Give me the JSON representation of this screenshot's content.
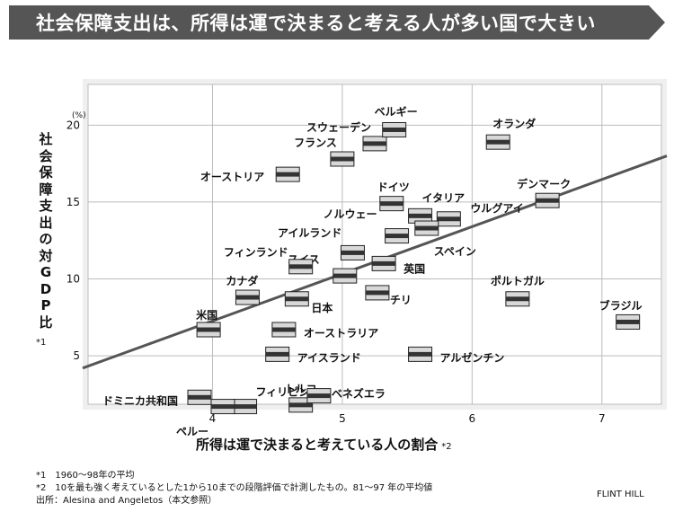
{
  "title": "社会保障支出は、所得は運で決まると考える人が多い国で大きい",
  "colors": {
    "banner": "#555555",
    "background": "#ffffff",
    "axis_band": "#efefef",
    "grid": "#bcbcbc",
    "trend": "#555555"
  },
  "chart_data": {
    "type": "scatter",
    "xlabel": "所得は運で決まると考えている人の割合",
    "xlabel_note": "*2",
    "ylabel": "社会保障支出の対GDP比",
    "ylabel_note": "*1",
    "y_unit": "(%)",
    "xlim": [
      3.0,
      7.5
    ],
    "ylim": [
      1.5,
      23
    ],
    "x_ticks": [
      "4",
      "5",
      "6",
      "7"
    ],
    "y_ticks": [
      "5",
      "10",
      "15",
      "20"
    ],
    "grid": true,
    "trend_line": {
      "from": [
        3.0,
        4.2
      ],
      "to": [
        7.5,
        18.0
      ]
    },
    "points": [
      {
        "label": "スウェーデン",
        "x": 5.25,
        "y": 18.8
      },
      {
        "label": "ベルギー",
        "x": 5.4,
        "y": 19.7
      },
      {
        "label": "オランダ",
        "x": 6.2,
        "y": 18.9
      },
      {
        "label": "フランス",
        "x": 5.0,
        "y": 17.8
      },
      {
        "label": "オーストリア",
        "x": 4.58,
        "y": 16.8
      },
      {
        "label": "ドイツ",
        "x": 5.38,
        "y": 14.9
      },
      {
        "label": "イタリア",
        "x": 5.6,
        "y": 14.1
      },
      {
        "label": "ウルグアイ",
        "x": 5.82,
        "y": 13.9
      },
      {
        "label": "デンマーク",
        "x": 6.58,
        "y": 15.1
      },
      {
        "label": "ノルウェー",
        "x": 5.42,
        "y": 12.8
      },
      {
        "label": "スペイン",
        "x": 5.65,
        "y": 13.3
      },
      {
        "label": "アイルランド",
        "x": 5.08,
        "y": 11.7
      },
      {
        "label": "スイス",
        "x": 5.02,
        "y": 10.2
      },
      {
        "label": "フィンランド",
        "x": 4.68,
        "y": 10.8
      },
      {
        "label": "英国",
        "x": 5.32,
        "y": 11.0
      },
      {
        "label": "カナダ",
        "x": 4.27,
        "y": 8.8
      },
      {
        "label": "日本",
        "x": 4.65,
        "y": 8.7
      },
      {
        "label": "チリ",
        "x": 5.27,
        "y": 9.1
      },
      {
        "label": "ポルトガル",
        "x": 6.35,
        "y": 8.7
      },
      {
        "label": "ブラジル",
        "x": 7.2,
        "y": 7.2
      },
      {
        "label": "米国",
        "x": 3.97,
        "y": 6.7
      },
      {
        "label": "オーストラリア",
        "x": 4.55,
        "y": 6.7
      },
      {
        "label": "アイスランド",
        "x": 4.5,
        "y": 5.1
      },
      {
        "label": "アルゼンチン",
        "x": 5.6,
        "y": 5.1
      },
      {
        "label": "ドミニカ共和国",
        "x": 3.9,
        "y": 2.3
      },
      {
        "label": "フィリピン",
        "x": 4.25,
        "y": 1.7
      },
      {
        "label": "ペルー",
        "x": 4.08,
        "y": 1.7
      },
      {
        "label": "トルコ",
        "x": 4.68,
        "y": 1.8
      },
      {
        "label": "ベネズエラ",
        "x": 4.82,
        "y": 2.4
      }
    ]
  },
  "footnotes": [
    "*1　1960～98年の平均",
    "*2　10を最も強く考えているとした1から10までの段階評価で計測したもの。81～97 年の平均値",
    "出所：Alesina and Angeletos（本文参照）"
  ],
  "credit": "FLINT HILL"
}
